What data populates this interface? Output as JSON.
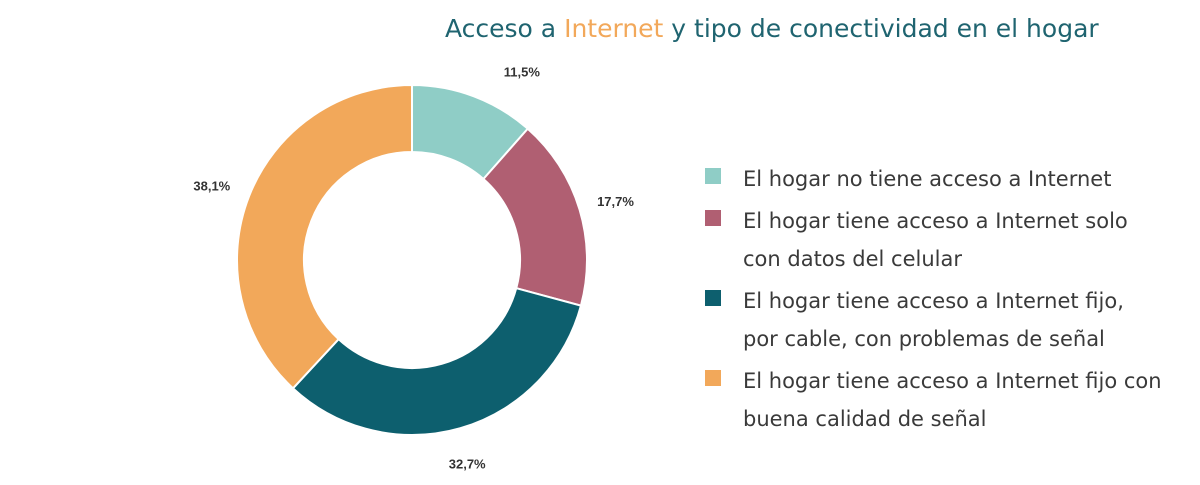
{
  "chart_data": {
    "type": "pie",
    "title_parts": [
      "Acceso a ",
      "Internet",
      " y tipo de conectividad en el hogar"
    ],
    "series": [
      {
        "label": "El hogar no tiene acceso a Internet",
        "value": 11.5,
        "display": "11,5%",
        "color": "#8fcdc6"
      },
      {
        "label": "El hogar tiene acceso a Internet solo con datos del celular",
        "value": 17.7,
        "display": "17,7%",
        "color": "#b05f72"
      },
      {
        "label": "El hogar tiene acceso a Internet fijo, por cable, con problemas de señal",
        "value": 32.7,
        "display": "32,7%",
        "color": "#0d5f6e"
      },
      {
        "label": "El hogar tiene acceso a Internet fijo con buena calidad de señal",
        "value": 38.1,
        "display": "38,1%",
        "color": "#f2a85a"
      }
    ],
    "donut": true,
    "legend_position": "right"
  }
}
